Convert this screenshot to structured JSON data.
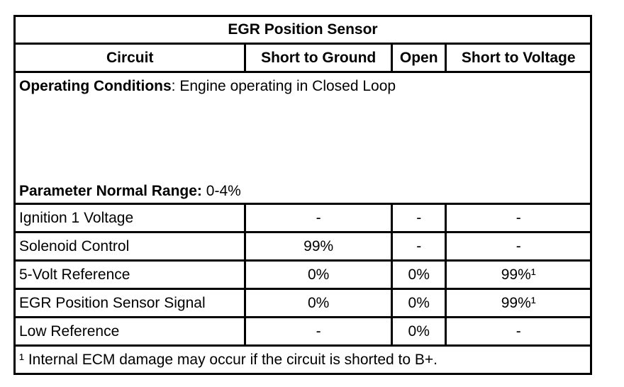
{
  "table": {
    "title": "EGR Position Sensor",
    "headers": [
      "Circuit",
      "Short to Ground",
      "Open",
      "Short to Voltage"
    ],
    "operating_conditions": {
      "label": "Operating Conditions",
      "separator": ":",
      "text": "Engine operating in Closed Loop"
    },
    "normal_range": {
      "label": "Parameter Normal Range:",
      "text": "0-4%"
    },
    "rows": [
      {
        "circuit": "Ignition 1 Voltage",
        "short_to_ground": "-",
        "open": "-",
        "short_to_voltage": "-"
      },
      {
        "circuit": "Solenoid Control",
        "short_to_ground": "99%",
        "open": "-",
        "short_to_voltage": "-"
      },
      {
        "circuit": "5-Volt Reference",
        "short_to_ground": "0%",
        "open": "0%",
        "short_to_voltage": "99%¹"
      },
      {
        "circuit": "EGR Position Sensor Signal",
        "short_to_ground": "0%",
        "open": "0%",
        "short_to_voltage": "99%¹"
      },
      {
        "circuit": "Low Reference",
        "short_to_ground": "-",
        "open": "0%",
        "short_to_voltage": "-"
      }
    ],
    "footnote": "¹ Internal ECM damage may occur if the circuit is shorted to B+."
  }
}
